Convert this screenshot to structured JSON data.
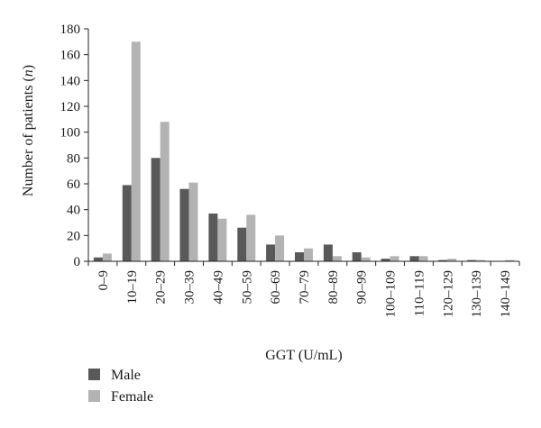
{
  "chart_data": {
    "type": "bar",
    "title": "",
    "xlabel": "GGT (U/mL)",
    "ylabel": "Number of patients (",
    "ylabel_italic": "n",
    "ylabel_suffix": ")",
    "ylim": [
      0,
      180
    ],
    "yticks": [
      0,
      20,
      40,
      60,
      80,
      100,
      120,
      140,
      160,
      180
    ],
    "grid": false,
    "legend_position": "bottom-left",
    "categories": [
      "0–9",
      "10–19",
      "20–29",
      "30–39",
      "40–49",
      "50–59",
      "60–69",
      "70–79",
      "80–89",
      "90–99",
      "100–109",
      "110–119",
      "120–129",
      "130–139",
      "140–149"
    ],
    "series": [
      {
        "name": "Male",
        "color": "#595959",
        "values": [
          3,
          59,
          80,
          56,
          37,
          26,
          13,
          7,
          13,
          7,
          2,
          4,
          1,
          1,
          0
        ]
      },
      {
        "name": "Female",
        "color": "#b3b3b3",
        "values": [
          6,
          170,
          108,
          61,
          33,
          36,
          20,
          10,
          4,
          3,
          4,
          4,
          2,
          1,
          1
        ]
      }
    ]
  }
}
